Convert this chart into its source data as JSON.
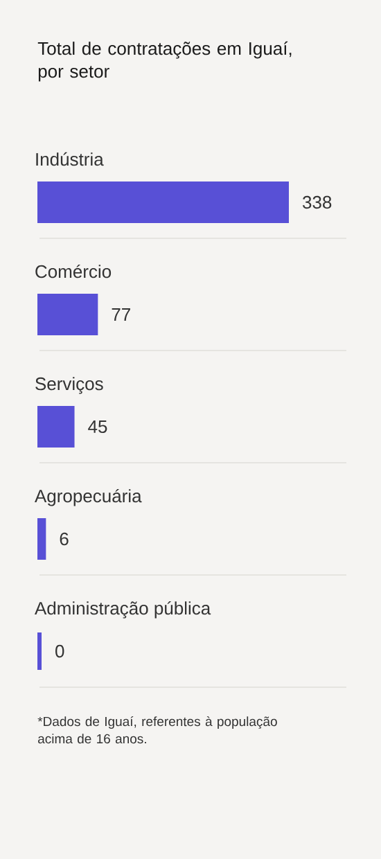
{
  "chart_data": {
    "type": "bar",
    "orientation": "horizontal",
    "title": "Total de contratações em Iguaí, por setor",
    "categories": [
      "Indústria",
      "Comércio",
      "Serviços",
      "Agropecuária",
      "Administração pública"
    ],
    "values": [
      338,
      77,
      45,
      6,
      0
    ],
    "color": "#5850d6",
    "data_labels": true,
    "grid": "y",
    "tick_labels": "y",
    "annotations": [
      "*Dados de Iguaí, referentes à população acima de 16 anos."
    ]
  }
}
